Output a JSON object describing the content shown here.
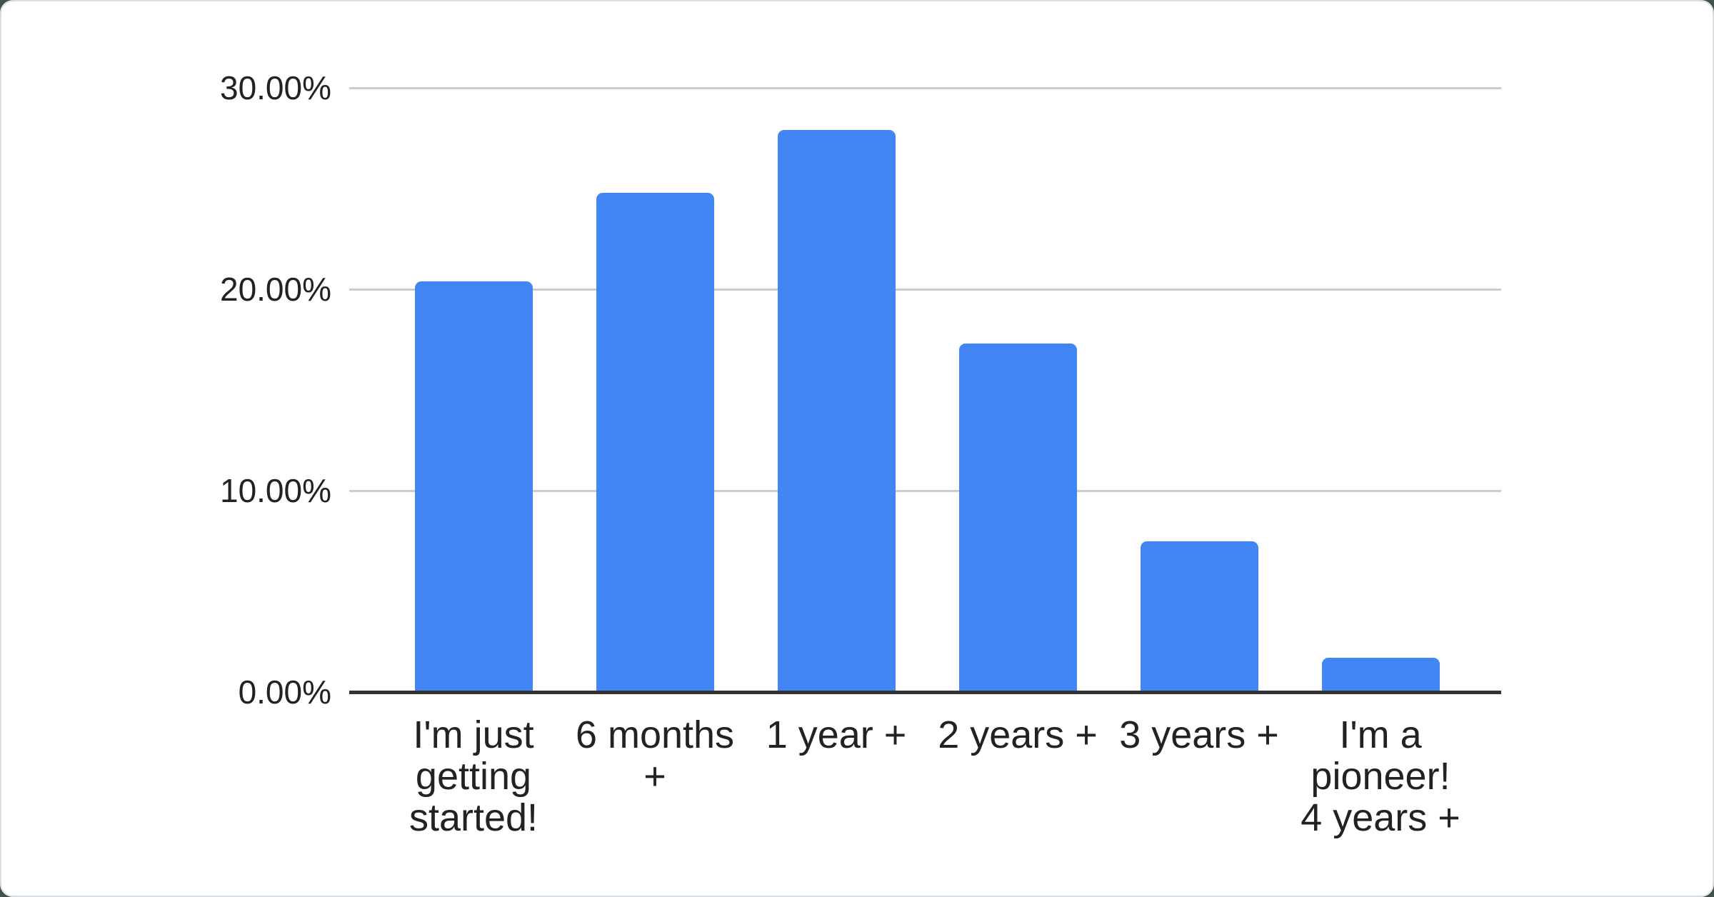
{
  "chart_data": {
    "type": "bar",
    "categories": [
      "I'm just getting started!",
      "6 months +",
      "1 year +",
      "2 years +",
      "3 years +",
      "I'm a pioneer! 4 years +"
    ],
    "category_display_lines": [
      "I'm just\ngetting\nstarted!",
      "6 months\n+",
      "1 year +",
      "2 years +",
      "3 years +",
      "I'm a\npioneer!\n4 years +"
    ],
    "values": [
      20.4,
      24.8,
      27.9,
      17.3,
      7.5,
      1.7
    ],
    "value_unit": "%",
    "ylim": [
      0,
      30
    ],
    "yticks": [
      {
        "value": 30,
        "label": "30.00%"
      },
      {
        "value": 20,
        "label": "20.00%"
      },
      {
        "value": 10,
        "label": "10.00%"
      },
      {
        "value": 0,
        "label": "0.00%"
      }
    ],
    "grid": true,
    "legend": "none",
    "colors": {
      "bar": "#4285F4",
      "gridline": "#CCCCCC",
      "axis_line": "#333333",
      "axis_text": "#222222",
      "card_background": "#FFFFFF",
      "card_border": "#D9DDE0",
      "page_background": "#45524A"
    }
  }
}
